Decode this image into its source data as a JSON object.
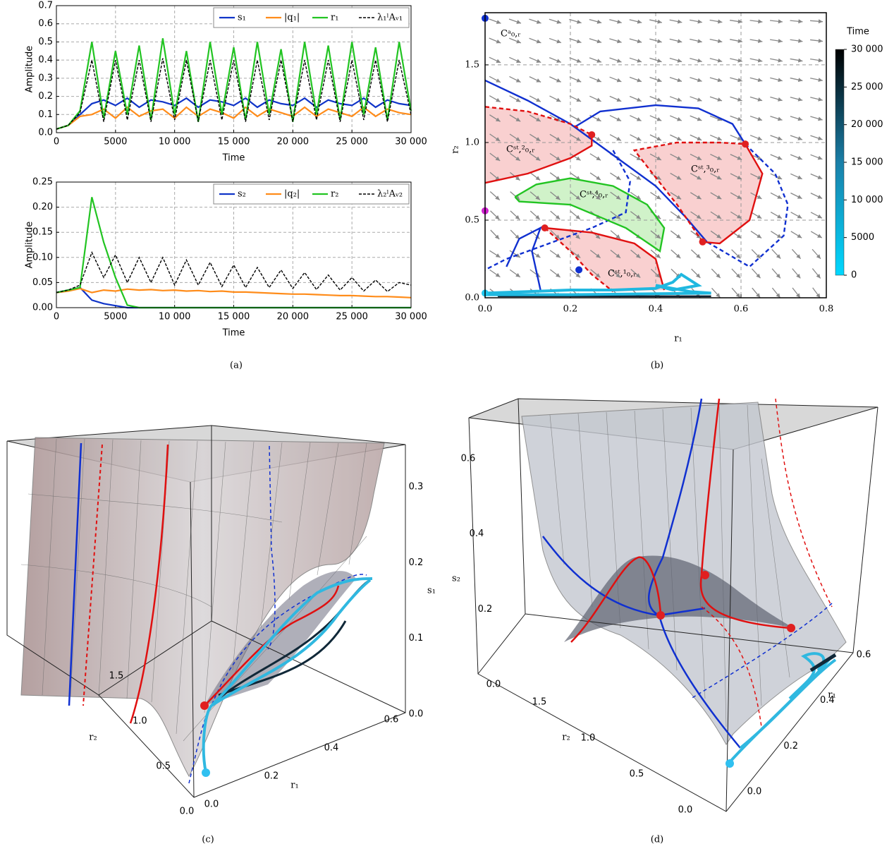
{
  "chart_data": [
    {
      "type": "line",
      "caption": "(a)",
      "xlabel": "Time",
      "ylabel": "Amplitude",
      "x": [
        0,
        1000,
        2000,
        3000,
        4000,
        5000,
        6000,
        7000,
        8000,
        9000,
        10000,
        11000,
        12000,
        13000,
        14000,
        15000,
        16000,
        17000,
        18000,
        19000,
        20000,
        21000,
        22000,
        23000,
        24000,
        25000,
        26000,
        27000,
        28000,
        29000,
        30000
      ],
      "xlim": [
        0,
        30000
      ],
      "xticks": [
        0,
        5000,
        {
          "value": 10000,
          "label": "10 000"
        },
        {
          "value": 15000,
          "label": "15 000"
        },
        {
          "value": 20000,
          "label": "20 000"
        },
        {
          "value": 25000,
          "label": "25 000"
        },
        {
          "value": 30000,
          "label": "30 000"
        }
      ],
      "ylim": [
        0,
        0.7
      ],
      "yticks": [
        {
          "value": 0,
          "label": "0.0"
        },
        {
          "value": 0.1,
          "label": "0.1"
        },
        {
          "value": 0.2,
          "label": "0.2"
        },
        {
          "value": 0.3,
          "label": "0.3"
        },
        {
          "value": 0.4,
          "label": "0.4"
        },
        {
          "value": 0.5,
          "label": "0.5"
        },
        {
          "value": 0.6,
          "label": "0.6"
        },
        {
          "value": 0.7,
          "label": "0.7"
        }
      ],
      "grid": true,
      "legend": "top-right",
      "series": [
        {
          "name": "s₁",
          "color": "#1034c8",
          "dash": false,
          "values": [
            0.02,
            0.04,
            0.1,
            0.16,
            0.18,
            0.15,
            0.19,
            0.14,
            0.18,
            0.17,
            0.15,
            0.19,
            0.14,
            0.18,
            0.17,
            0.15,
            0.19,
            0.14,
            0.18,
            0.16,
            0.15,
            0.19,
            0.14,
            0.18,
            0.16,
            0.15,
            0.19,
            0.14,
            0.18,
            0.16,
            0.15
          ]
        },
        {
          "name": "|q₁|",
          "color": "#ff8c1a",
          "dash": false,
          "values": [
            0.02,
            0.04,
            0.09,
            0.1,
            0.13,
            0.08,
            0.14,
            0.09,
            0.12,
            0.13,
            0.08,
            0.14,
            0.09,
            0.13,
            0.11,
            0.08,
            0.14,
            0.09,
            0.13,
            0.11,
            0.09,
            0.14,
            0.09,
            0.13,
            0.11,
            0.09,
            0.14,
            0.09,
            0.13,
            0.11,
            0.1
          ]
        },
        {
          "name": "r₁",
          "color": "#22c422",
          "dash": false,
          "values": [
            0.02,
            0.04,
            0.12,
            0.5,
            0.08,
            0.45,
            0.1,
            0.48,
            0.07,
            0.52,
            0.1,
            0.45,
            0.06,
            0.5,
            0.1,
            0.47,
            0.07,
            0.5,
            0.1,
            0.46,
            0.06,
            0.5,
            0.1,
            0.48,
            0.07,
            0.5,
            0.1,
            0.47,
            0.07,
            0.5,
            0.12
          ]
        },
        {
          "name": "λ₁ˡAᵥ₁",
          "color": "#000000",
          "dash": true,
          "values": [
            0.02,
            0.04,
            0.11,
            0.4,
            0.06,
            0.4,
            0.07,
            0.4,
            0.06,
            0.41,
            0.07,
            0.4,
            0.06,
            0.4,
            0.07,
            0.4,
            0.06,
            0.4,
            0.07,
            0.4,
            0.06,
            0.4,
            0.07,
            0.4,
            0.06,
            0.4,
            0.07,
            0.4,
            0.06,
            0.4,
            0.1
          ]
        }
      ]
    },
    {
      "type": "line",
      "xlabel": "Time",
      "ylabel": "Amplitude",
      "x": [
        0,
        1000,
        2000,
        3000,
        4000,
        5000,
        6000,
        7000,
        8000,
        9000,
        10000,
        11000,
        12000,
        13000,
        14000,
        15000,
        16000,
        17000,
        18000,
        19000,
        20000,
        21000,
        22000,
        23000,
        24000,
        25000,
        26000,
        27000,
        28000,
        29000,
        30000
      ],
      "xlim": [
        0,
        30000
      ],
      "xticks": [
        0,
        5000,
        {
          "value": 10000,
          "label": "10 000"
        },
        {
          "value": 15000,
          "label": "15 000"
        },
        {
          "value": 20000,
          "label": "20 000"
        },
        {
          "value": 25000,
          "label": "25 000"
        },
        {
          "value": 30000,
          "label": "30 000"
        }
      ],
      "ylim": [
        0,
        0.25
      ],
      "yticks": [
        {
          "value": 0,
          "label": "0.00"
        },
        {
          "value": 0.05,
          "label": "0.05"
        },
        {
          "value": 0.1,
          "label": "0.10"
        },
        {
          "value": 0.15,
          "label": "0.15"
        },
        {
          "value": 0.2,
          "label": "0.20"
        },
        {
          "value": 0.25,
          "label": "0.25"
        }
      ],
      "grid": true,
      "legend": "top-right",
      "series": [
        {
          "name": "s₂",
          "color": "#1034c8",
          "dash": false,
          "values": [
            0.03,
            0.035,
            0.04,
            0.015,
            0.008,
            0.004,
            0,
            0,
            0,
            0,
            0,
            0,
            0,
            0,
            0,
            0,
            0,
            0,
            0,
            0,
            0,
            0,
            0,
            0,
            0,
            0,
            0,
            0,
            0,
            0,
            0
          ]
        },
        {
          "name": "|q₂|",
          "color": "#ff8c1a",
          "dash": false,
          "values": [
            0.03,
            0.033,
            0.038,
            0.03,
            0.035,
            0.033,
            0.037,
            0.035,
            0.036,
            0.034,
            0.035,
            0.033,
            0.034,
            0.032,
            0.033,
            0.031,
            0.031,
            0.03,
            0.029,
            0.028,
            0.027,
            0.027,
            0.026,
            0.025,
            0.024,
            0.024,
            0.023,
            0.022,
            0.022,
            0.021,
            0.02
          ]
        },
        {
          "name": "r₂",
          "color": "#22c422",
          "dash": false,
          "values": [
            0.03,
            0.035,
            0.04,
            0.22,
            0.13,
            0.06,
            0.005,
            0,
            0,
            0,
            0,
            0,
            0,
            0,
            0,
            0,
            0,
            0,
            0,
            0,
            0,
            0,
            0,
            0,
            0,
            0,
            0,
            0,
            0,
            0,
            0
          ]
        },
        {
          "name": "λ₂ˡAᵥ₂",
          "color": "#000000",
          "dash": true,
          "values": [
            0.03,
            0.035,
            0.045,
            0.11,
            0.06,
            0.105,
            0.05,
            0.1,
            0.05,
            0.1,
            0.045,
            0.095,
            0.045,
            0.09,
            0.042,
            0.085,
            0.04,
            0.08,
            0.04,
            0.075,
            0.038,
            0.07,
            0.036,
            0.065,
            0.035,
            0.06,
            0.033,
            0.055,
            0.032,
            0.05,
            0.045
          ]
        }
      ]
    },
    {
      "type": "phase",
      "caption": "(b)",
      "xlabel": "r₁",
      "ylabel": "r₂",
      "xlim": [
        0,
        0.8
      ],
      "xticks": [
        {
          "value": 0,
          "label": "0.0"
        },
        {
          "value": 0.2,
          "label": "0.2"
        },
        {
          "value": 0.4,
          "label": "0.4"
        },
        {
          "value": 0.6,
          "label": "0.6"
        },
        {
          "value": 0.8,
          "label": "0.8"
        }
      ],
      "ylim": [
        0,
        1.836
      ],
      "yticks": [
        {
          "value": 0,
          "label": "0.0"
        },
        {
          "value": 0.5,
          "label": "0.5"
        },
        {
          "value": 1,
          "label": "1.0"
        },
        {
          "value": 1.5,
          "label": "1.5"
        }
      ],
      "grid": true,
      "regions": [
        {
          "color": "#f8c8c8",
          "x": [
            0,
            0.1,
            0.2,
            0.25,
            0.25,
            0.2,
            0.1,
            0
          ],
          "y": [
            0.74,
            0.8,
            0.9,
            0.98,
            1.05,
            1.12,
            1.2,
            1.23
          ]
        },
        {
          "color": "#f8c8c8",
          "x": [
            0.35,
            0.45,
            0.55,
            0.61,
            0.65,
            0.62,
            0.55,
            0.51,
            0.45
          ],
          "y": [
            0.95,
            1.0,
            1.0,
            0.99,
            0.8,
            0.5,
            0.35,
            0.36,
            0.6
          ]
        },
        {
          "color": "#c8f0c0",
          "x": [
            0.07,
            0.12,
            0.2,
            0.3,
            0.38,
            0.42,
            0.41,
            0.33,
            0.2,
            0.08
          ],
          "y": [
            0.65,
            0.73,
            0.77,
            0.72,
            0.6,
            0.45,
            0.3,
            0.45,
            0.6,
            0.62
          ]
        },
        {
          "color": "#f8c8c8",
          "x": [
            0.14,
            0.25,
            0.35,
            0.4,
            0.42,
            0.3,
            0.25,
            0.2
          ],
          "y": [
            0.45,
            0.42,
            0.35,
            0.25,
            0.05,
            0.04,
            0.15,
            0.3
          ]
        }
      ],
      "curves": [
        {
          "color": "#1030d0",
          "dash": false,
          "x": [
            0,
            0.1,
            0.2,
            0.3,
            0.4,
            0.47,
            0.52
          ],
          "y": [
            1.4,
            1.27,
            1.12,
            0.92,
            0.72,
            0.52,
            0.36
          ]
        },
        {
          "color": "#1030d0",
          "dash": false,
          "x": [
            0.21,
            0.27,
            0.4,
            0.5,
            0.58,
            0.61
          ],
          "y": [
            1.1,
            1.2,
            1.24,
            1.22,
            1.12,
            0.99
          ]
        },
        {
          "color": "#1030d0",
          "dash": true,
          "x": [
            0.61,
            0.68,
            0.71,
            0.7,
            0.62,
            0.52
          ],
          "y": [
            0.99,
            0.8,
            0.6,
            0.4,
            0.2,
            0.36
          ]
        },
        {
          "color": "#1030d0",
          "dash": true,
          "x": [
            0.3,
            0.34,
            0.33,
            0.25,
            0.15,
            0.05,
            0
          ],
          "y": [
            0.95,
            0.75,
            0.55,
            0.45,
            0.35,
            0.25,
            0.18
          ]
        },
        {
          "color": "#1030d0",
          "dash": false,
          "x": [
            0.05,
            0.08,
            0.13,
            0.11,
            0.13
          ],
          "y": [
            0.2,
            0.38,
            0.45,
            0.3,
            0.05
          ]
        },
        {
          "color": "#e01010",
          "dash": false,
          "x": [
            0,
            0.1,
            0.2,
            0.25,
            0.25
          ],
          "y": [
            0.74,
            0.8,
            0.9,
            0.98,
            1.05
          ]
        },
        {
          "color": "#e01010",
          "dash": true,
          "x": [
            0,
            0.1,
            0.2,
            0.25
          ],
          "y": [
            1.23,
            1.2,
            1.12,
            1.05
          ]
        },
        {
          "color": "#e01010",
          "dash": true,
          "x": [
            0.51,
            0.45,
            0.35,
            0.45,
            0.55,
            0.61
          ],
          "y": [
            0.36,
            0.6,
            0.95,
            1.0,
            1.0,
            0.99
          ]
        },
        {
          "color": "#e01010",
          "dash": false,
          "x": [
            0.61,
            0.65,
            0.62,
            0.55,
            0.51
          ],
          "y": [
            0.99,
            0.8,
            0.5,
            0.35,
            0.36
          ]
        },
        {
          "color": "#22c422",
          "dash": false,
          "x": [
            0.07,
            0.12,
            0.2,
            0.3,
            0.38,
            0.42,
            0.41,
            0.33,
            0.2,
            0.08,
            0.07
          ],
          "y": [
            0.65,
            0.73,
            0.77,
            0.72,
            0.6,
            0.45,
            0.3,
            0.45,
            0.6,
            0.62,
            0.65
          ]
        },
        {
          "color": "#e01010",
          "dash": false,
          "x": [
            0.14,
            0.25,
            0.35,
            0.4,
            0.42
          ],
          "y": [
            0.45,
            0.42,
            0.35,
            0.25,
            0.05
          ]
        },
        {
          "color": "#e01010",
          "dash": true,
          "x": [
            0.14,
            0.2,
            0.25,
            0.3
          ],
          "y": [
            0.45,
            0.3,
            0.15,
            0.04
          ]
        },
        {
          "color": "#102030",
          "dash": false,
          "x": [
            0.03,
            0.53
          ],
          "y": [
            0.01,
            0.01
          ]
        },
        {
          "color": "#20b8e0",
          "dash": false,
          "x": [
            0,
            0.1,
            0.2,
            0.3,
            0.4,
            0.44,
            0.46,
            0.5,
            0.44,
            0.4,
            0.48,
            0.53,
            0.2,
            0
          ],
          "y": [
            0.03,
            0.04,
            0.05,
            0.05,
            0.06,
            0.1,
            0.15,
            0.08,
            0.05,
            0.08,
            0.04,
            0.03,
            0.02,
            0.02
          ]
        }
      ],
      "points": {
        "x": [
          0.14,
          0.25,
          0.61,
          0.51,
          0,
          0.22,
          0,
          0
        ],
        "y": [
          0.45,
          1.05,
          0.99,
          0.36,
          1.8,
          0.18,
          0.56,
          0.03
        ],
        "colors": [
          "#e02020",
          "#e02020",
          "#e02020",
          "#e02020",
          "#1030d0",
          "#1030d0",
          "#d020d0",
          "#20c8f0"
        ]
      },
      "annotations": [
        "Cᵃ₀,ᵣ",
        "Cˢᵗ,²₀,ᵣ",
        "Cˢᵗ,³₀,ᵣ",
        "Cˢᵗ,⁴₀,ᵣ",
        "Cˢᵗ,¹₀,ᵣ"
      ],
      "colorbar": {
        "title": "Time",
        "lim": [
          0,
          30000
        ],
        "ticks": [
          0,
          5000,
          {
            "value": 10000,
            "label": "10 000"
          },
          {
            "value": 15000,
            "label": "15 000"
          },
          {
            "value": 20000,
            "label": "20 000"
          },
          {
            "value": 25000,
            "label": "25 000"
          },
          {
            "value": 30000,
            "label": "30 000"
          }
        ]
      }
    },
    {
      "type": "surface3d",
      "caption": "(c)",
      "xlabel": "r₁",
      "ylabel": "r₂",
      "zlabel": "s₁",
      "xlim": [
        0,
        0.6
      ],
      "xticks": [
        {
          "value": 0,
          "label": "0.0"
        },
        {
          "value": 0.2,
          "label": "0.2"
        },
        {
          "value": 0.4,
          "label": "0.4"
        },
        {
          "value": 0.6,
          "label": "0.6"
        }
      ],
      "ylim": [
        0,
        1.5
      ],
      "yticks": [
        {
          "value": 0,
          "label": "0.0"
        },
        {
          "value": 0.5,
          "label": "0.5"
        },
        {
          "value": 1,
          "label": "1.0"
        },
        {
          "value": 1.5,
          "label": "1.5"
        }
      ],
      "zlim": [
        0,
        0.3
      ],
      "zticks": [
        {
          "value": 0,
          "label": "0.0"
        },
        {
          "value": 0.1,
          "label": "0.1"
        },
        {
          "value": 0.2,
          "label": "0.2"
        },
        {
          "value": 0.3,
          "label": "0.3"
        }
      ]
    },
    {
      "type": "surface3d",
      "caption": "(d)",
      "xlabel": "r₁",
      "ylabel": "r₂",
      "zlabel": "s₂",
      "xlim": [
        0,
        0.6
      ],
      "xticks": [
        {
          "value": 0,
          "label": "0.0"
        },
        {
          "value": 0.2,
          "label": "0.2"
        },
        {
          "value": 0.4,
          "label": "0.4"
        },
        {
          "value": 0.6,
          "label": "0.6"
        }
      ],
      "ylim": [
        0,
        1.5
      ],
      "yticks": [
        {
          "value": 0,
          "label": "0.0"
        },
        {
          "value": 0.5,
          "label": "0.5"
        },
        {
          "value": 1,
          "label": "1.0"
        },
        {
          "value": 1.5,
          "label": "1.5"
        }
      ],
      "zlim": [
        0,
        0.6
      ],
      "zticks": [
        {
          "value": 0,
          "label": "0.0"
        },
        {
          "value": 0.2,
          "label": "0.2"
        },
        {
          "value": 0.4,
          "label": "0.4"
        },
        {
          "value": 0.6,
          "label": "0.6"
        }
      ]
    }
  ]
}
